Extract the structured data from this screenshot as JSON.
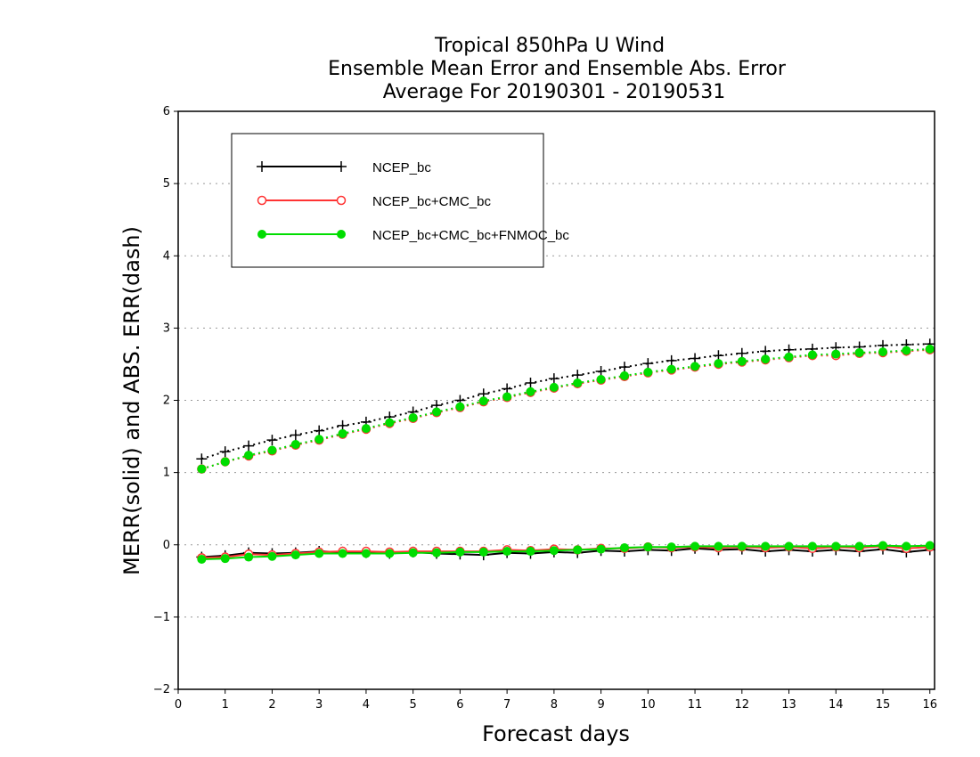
{
  "chart_data": {
    "type": "line",
    "title": [
      "Tropical 850hPa U Wind",
      "Ensemble Mean Error and Ensemble Abs. Error",
      "Average For 20190301 - 20190531"
    ],
    "xlabel": "Forecast days",
    "ylabel": "MERR(solid) and ABS. ERR(dash)",
    "xlim": [
      0,
      16.1
    ],
    "ylim": [
      -2,
      6
    ],
    "xticks": [
      0,
      1,
      2,
      3,
      4,
      5,
      6,
      7,
      8,
      9,
      10,
      11,
      12,
      13,
      14,
      15,
      16
    ],
    "yticks": [
      -2,
      -1,
      0,
      1,
      2,
      3,
      4,
      5,
      6
    ],
    "grid": "horizontal dotted",
    "legend_position": "top-left",
    "x": [
      0.5,
      1.0,
      1.5,
      2.0,
      2.5,
      3.0,
      3.5,
      4.0,
      4.5,
      5.0,
      5.5,
      6.0,
      6.5,
      7.0,
      7.5,
      8.0,
      8.5,
      9.0,
      9.5,
      10.0,
      10.5,
      11.0,
      11.5,
      12.0,
      12.5,
      13.0,
      13.5,
      14.0,
      14.5,
      15.0,
      15.5,
      16.0
    ],
    "series": [
      {
        "name": "NCEP_bc",
        "color": "#000000",
        "marker": "plus",
        "abs_err": [
          1.19,
          1.29,
          1.37,
          1.45,
          1.52,
          1.58,
          1.65,
          1.7,
          1.77,
          1.84,
          1.93,
          2.0,
          2.09,
          2.16,
          2.24,
          2.3,
          2.35,
          2.4,
          2.46,
          2.51,
          2.55,
          2.58,
          2.62,
          2.65,
          2.68,
          2.7,
          2.71,
          2.73,
          2.74,
          2.76,
          2.77,
          2.78
        ],
        "mean_err": [
          -0.17,
          -0.15,
          -0.11,
          -0.12,
          -0.11,
          -0.09,
          -0.1,
          -0.11,
          -0.12,
          -0.1,
          -0.12,
          -0.13,
          -0.14,
          -0.11,
          -0.12,
          -0.1,
          -0.11,
          -0.08,
          -0.09,
          -0.07,
          -0.08,
          -0.05,
          -0.07,
          -0.06,
          -0.09,
          -0.07,
          -0.09,
          -0.07,
          -0.09,
          -0.06,
          -0.1,
          -0.07
        ]
      },
      {
        "name": "NCEP_bc+CMC_bc",
        "color": "#ff3333",
        "marker": "open-circle",
        "abs_err": [
          1.05,
          1.15,
          1.23,
          1.3,
          1.38,
          1.45,
          1.53,
          1.6,
          1.68,
          1.75,
          1.83,
          1.9,
          1.98,
          2.04,
          2.11,
          2.17,
          2.23,
          2.28,
          2.33,
          2.38,
          2.42,
          2.46,
          2.5,
          2.53,
          2.56,
          2.59,
          2.62,
          2.62,
          2.65,
          2.66,
          2.68,
          2.7
        ],
        "mean_err": [
          -0.18,
          -0.17,
          -0.13,
          -0.14,
          -0.12,
          -0.1,
          -0.09,
          -0.09,
          -0.1,
          -0.09,
          -0.09,
          -0.09,
          -0.09,
          -0.07,
          -0.08,
          -0.06,
          -0.07,
          -0.05,
          -0.05,
          -0.03,
          -0.04,
          -0.03,
          -0.04,
          -0.03,
          -0.04,
          -0.03,
          -0.05,
          -0.03,
          -0.04,
          -0.02,
          -0.05,
          -0.03
        ]
      },
      {
        "name": "NCEP_bc+CMC_bc+FNMOC_bc",
        "color": "#00dd00",
        "marker": "filled-circle",
        "abs_err": [
          1.05,
          1.15,
          1.24,
          1.31,
          1.39,
          1.46,
          1.54,
          1.61,
          1.69,
          1.76,
          1.84,
          1.91,
          1.99,
          2.05,
          2.12,
          2.18,
          2.24,
          2.29,
          2.34,
          2.39,
          2.43,
          2.47,
          2.51,
          2.54,
          2.57,
          2.6,
          2.63,
          2.64,
          2.66,
          2.67,
          2.69,
          2.71
        ],
        "mean_err": [
          -0.2,
          -0.19,
          -0.17,
          -0.16,
          -0.14,
          -0.12,
          -0.12,
          -0.12,
          -0.12,
          -0.11,
          -0.11,
          -0.1,
          -0.1,
          -0.09,
          -0.09,
          -0.08,
          -0.07,
          -0.06,
          -0.04,
          -0.03,
          -0.03,
          -0.02,
          -0.02,
          -0.02,
          -0.02,
          -0.02,
          -0.02,
          -0.02,
          -0.02,
          -0.01,
          -0.02,
          -0.01
        ]
      }
    ]
  }
}
